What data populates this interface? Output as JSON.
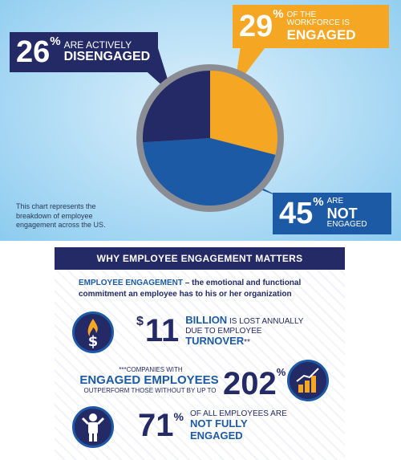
{
  "chart_data": {
    "type": "pie",
    "categories": [
      "Engaged",
      "Not Engaged",
      "Actively Disengaged"
    ],
    "values": [
      29,
      45,
      26
    ],
    "colors": [
      "#f5a623",
      "#1c5aa6",
      "#242a66"
    ]
  },
  "callouts": {
    "disengaged": {
      "value": "26",
      "pct": "%",
      "line1": "ARE ACTIVELY",
      "line2": "DISENGAGED"
    },
    "engaged": {
      "value": "29",
      "pct": "%",
      "line1": "OF THE",
      "line2": "WORKFORCE IS",
      "line3": "ENGAGED"
    },
    "not_engaged": {
      "value": "45",
      "pct": "%",
      "line1": "ARE",
      "line2": "NOT",
      "line3": "ENGAGED"
    }
  },
  "note": "This chart represents the breakdown of employee engagement across the US.",
  "matters": {
    "title": "WHY EMPLOYEE ENGAGEMENT MATTERS",
    "definition_key": "EMPLOYEE ENGAGEMENT",
    "definition_text": " – the emotional and functional commitment an employee has to his or her organization",
    "stat1": {
      "currency": "$",
      "value": "11",
      "bold1": "BILLION",
      "text": " IS LOST ANNUALLY",
      "text2": "DUE TO EMPLOYEE",
      "bold2": "TURNOVER",
      "mark": "**"
    },
    "stat2": {
      "line1": "***COMPANIES WITH",
      "line2": "ENGAGED EMPLOYEES",
      "line3": "OUTPERFORM THOSE WITHOUT BY UP TO",
      "value": "202",
      "pct": "%"
    },
    "stat3": {
      "value": "71",
      "pct": "%",
      "text": "OF ALL EMPLOYEES ARE",
      "bold1": "NOT FULLY",
      "bold2": "ENGAGED"
    }
  },
  "icons": {
    "money": "money-flame-icon",
    "growth": "growth-chart-icon",
    "person": "person-icon"
  }
}
